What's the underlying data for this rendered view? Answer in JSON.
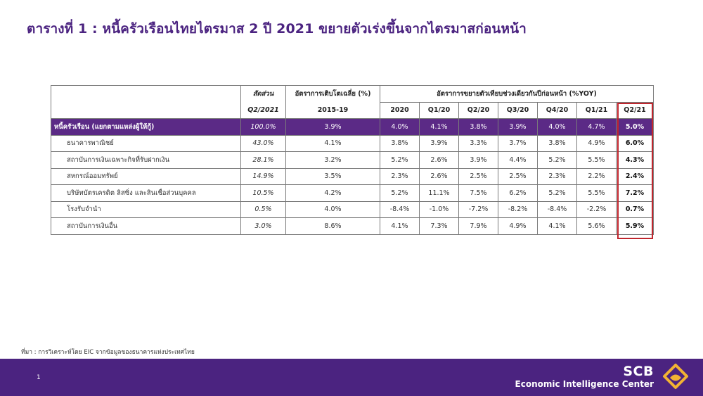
{
  "title": "ตารางที่ 1 : หนี้ครัวเรือนไทยไตรมาส 2 ปี 2021 ขยายตัวเร่งขึ้นจากไตรมาสก่อนหน้า",
  "table": {
    "header": {
      "share_label": "สัดส่วน",
      "share_period": "Q2/2021",
      "avg_label": "อัตราการเติบโตเฉลี่ย (%)",
      "avg_period": "2015-19",
      "yoy_label": "อัตราการขยายตัวเทียบช่วงเดียวกันปีก่อนหน้า (%YOY)",
      "periods": [
        "2020",
        "Q1/20",
        "Q2/20",
        "Q3/20",
        "Q4/20",
        "Q1/21",
        "Q2/21"
      ]
    },
    "rows": [
      {
        "label": "หนี้ครัวเรือน (แยกตามแหล่งผู้ให้กู้)",
        "share": "100.0%",
        "avg": "3.9%",
        "values": [
          "4.0%",
          "4.1%",
          "3.8%",
          "3.9%",
          "4.0%",
          "4.7%",
          "5.0%"
        ]
      },
      {
        "label": "ธนาคารพาณิชย์",
        "share": "43.0%",
        "avg": "4.1%",
        "values": [
          "3.8%",
          "3.9%",
          "3.3%",
          "3.7%",
          "3.8%",
          "4.9%",
          "6.0%"
        ]
      },
      {
        "label": "สถาบันการเงินเฉพาะกิจที่รับฝากเงิน",
        "share": "28.1%",
        "avg": "3.2%",
        "values": [
          "5.2%",
          "2.6%",
          "3.9%",
          "4.4%",
          "5.2%",
          "5.5%",
          "4.3%"
        ]
      },
      {
        "label": "สหกรณ์ออมทรัพย์",
        "share": "14.9%",
        "avg": "3.5%",
        "values": [
          "2.3%",
          "2.6%",
          "2.5%",
          "2.5%",
          "2.3%",
          "2.2%",
          "2.4%"
        ]
      },
      {
        "label": "บริษัทบัตรเครดิต ลิสซิ่ง และสินเชื่อส่วนบุคคล",
        "share": "10.5%",
        "avg": "4.2%",
        "values": [
          "5.2%",
          "11.1%",
          "7.5%",
          "6.2%",
          "5.2%",
          "5.5%",
          "7.2%"
        ]
      },
      {
        "label": "โรงรับจำนำ",
        "share": "0.5%",
        "avg": "4.0%",
        "values": [
          "-8.4%",
          "-1.0%",
          "-7.2%",
          "-8.2%",
          "-8.4%",
          "-2.2%",
          "0.7%"
        ]
      },
      {
        "label": "สถาบันการเงินอื่น",
        "share": "3.0%",
        "avg": "8.6%",
        "values": [
          "4.1%",
          "7.3%",
          "7.9%",
          "4.9%",
          "4.1%",
          "5.6%",
          "5.9%"
        ]
      }
    ]
  },
  "source": "ที่มา : การวิเคราะห์โดย EIC จากข้อมูลของธนาคารแห่งประเทศไทย",
  "footer": {
    "page_number": "1",
    "brand": "SCB",
    "unit": "Economic Intelligence Center"
  },
  "colors": {
    "purple": "#4b2380",
    "highlight_row": "#5b2a86",
    "red_box": "#c0262d",
    "logo_gold": "#f2b233"
  },
  "icons": {
    "logo": "scb-lotus-logo-icon"
  }
}
